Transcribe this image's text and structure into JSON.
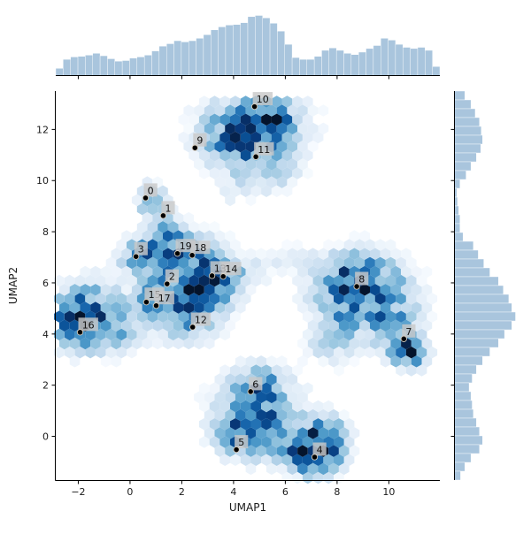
{
  "chart_data": {
    "type": "hexbin",
    "title": "",
    "xlabel": "UMAP1",
    "ylabel": "UMAP2",
    "x_tick_labels": [
      "−2",
      "0",
      "2",
      "4",
      "6",
      "8",
      "10"
    ],
    "x_tick_values": [
      -2,
      0,
      2,
      4,
      6,
      8,
      10
    ],
    "y_tick_labels": [
      "0",
      "2",
      "4",
      "6",
      "8",
      "10",
      "12"
    ],
    "y_tick_values": [
      0,
      2,
      4,
      6,
      8,
      10,
      12
    ],
    "xlim": [
      -2.87,
      11.97
    ],
    "ylim": [
      -1.71,
      13.5
    ],
    "colormap": "Blues",
    "legend": "none",
    "grid": false,
    "cluster_labels": [
      {
        "label": "0",
        "x": 0.6,
        "y": 9.32
      },
      {
        "label": "1",
        "x": 1.28,
        "y": 8.63
      },
      {
        "label": "2",
        "x": 1.43,
        "y": 5.96
      },
      {
        "label": "3",
        "x": 0.23,
        "y": 7.03
      },
      {
        "label": "4",
        "x": 7.13,
        "y": -0.81
      },
      {
        "label": "5",
        "x": 4.11,
        "y": -0.52
      },
      {
        "label": "6",
        "x": 4.66,
        "y": 1.75
      },
      {
        "label": "7",
        "x": 10.58,
        "y": 3.81
      },
      {
        "label": "8",
        "x": 8.76,
        "y": 5.86
      },
      {
        "label": "9",
        "x": 2.51,
        "y": 11.28
      },
      {
        "label": "10",
        "x": 4.81,
        "y": 12.89
      },
      {
        "label": "11",
        "x": 4.86,
        "y": 10.93
      },
      {
        "label": "12",
        "x": 2.42,
        "y": 4.27
      },
      {
        "label": "13",
        "x": 3.17,
        "y": 6.28
      },
      {
        "label": "14",
        "x": 3.6,
        "y": 6.25
      },
      {
        "label": "15",
        "x": 0.63,
        "y": 5.25
      },
      {
        "label": "16",
        "x": -1.93,
        "y": 4.07
      },
      {
        "label": "17",
        "x": 1.01,
        "y": 5.11
      },
      {
        "label": "18",
        "x": 2.4,
        "y": 7.08
      },
      {
        "label": "19",
        "x": 1.83,
        "y": 7.15
      }
    ],
    "density_blobs": [
      {
        "x": 4.75,
        "y": 11.95,
        "sx": 1.15,
        "sy": 0.9,
        "a": 0.95
      },
      {
        "x": 5.45,
        "y": 12.35,
        "sx": 0.55,
        "sy": 0.5,
        "a": 0.5
      },
      {
        "x": 3.95,
        "y": 11.35,
        "sx": 0.6,
        "sy": 0.55,
        "a": 0.35
      },
      {
        "x": 5.55,
        "y": 10.3,
        "sx": 0.5,
        "sy": 0.5,
        "a": 0.3
      },
      {
        "x": 4.15,
        "y": 9.8,
        "sx": 0.45,
        "sy": 0.4,
        "a": 0.1
      },
      {
        "x": 2.35,
        "y": 6.1,
        "sx": 1.0,
        "sy": 0.9,
        "a": 0.75
      },
      {
        "x": 3.0,
        "y": 5.85,
        "sx": 0.6,
        "sy": 0.5,
        "a": 0.5
      },
      {
        "x": 1.15,
        "y": 7.3,
        "sx": 0.6,
        "sy": 0.45,
        "a": 0.55
      },
      {
        "x": 0.3,
        "y": 7.0,
        "sx": 0.45,
        "sy": 0.4,
        "a": 0.6
      },
      {
        "x": 2.0,
        "y": 7.4,
        "sx": 0.55,
        "sy": 0.45,
        "a": 0.45
      },
      {
        "x": 3.35,
        "y": 6.6,
        "sx": 0.5,
        "sy": 0.45,
        "a": 0.4
      },
      {
        "x": 1.3,
        "y": 8.45,
        "sx": 0.35,
        "sy": 0.45,
        "a": 0.45
      },
      {
        "x": 0.75,
        "y": 9.3,
        "sx": 0.35,
        "sy": 0.45,
        "a": 0.5
      },
      {
        "x": 2.15,
        "y": 4.7,
        "sx": 0.85,
        "sy": 0.6,
        "a": 0.5
      },
      {
        "x": 1.0,
        "y": 5.3,
        "sx": 0.6,
        "sy": 0.5,
        "a": 0.5
      },
      {
        "x": 4.4,
        "y": 6.45,
        "sx": 0.6,
        "sy": 0.4,
        "a": 0.2
      },
      {
        "x": 5.5,
        "y": 6.9,
        "sx": 0.55,
        "sy": 0.4,
        "a": 0.08
      },
      {
        "x": 4.05,
        "y": 9.65,
        "sx": 0.4,
        "sy": 0.4,
        "a": 0.07
      },
      {
        "x": -1.65,
        "y": 4.7,
        "sx": 0.85,
        "sy": 0.8,
        "a": 0.9
      },
      {
        "x": -2.25,
        "y": 4.5,
        "sx": 0.5,
        "sy": 0.5,
        "a": 0.55
      },
      {
        "x": -0.5,
        "y": 4.15,
        "sx": 0.75,
        "sy": 0.5,
        "a": 0.3
      },
      {
        "x": 9.0,
        "y": 5.75,
        "sx": 1.15,
        "sy": 0.85,
        "a": 0.85
      },
      {
        "x": 8.55,
        "y": 6.3,
        "sx": 0.6,
        "sy": 0.5,
        "a": 0.5
      },
      {
        "x": 10.0,
        "y": 4.4,
        "sx": 0.7,
        "sy": 0.6,
        "a": 0.5
      },
      {
        "x": 10.75,
        "y": 3.3,
        "sx": 0.42,
        "sy": 0.38,
        "a": 1.25
      },
      {
        "x": 7.7,
        "y": 3.5,
        "sx": 0.6,
        "sy": 0.5,
        "a": 0.25
      },
      {
        "x": 8.3,
        "y": 4.6,
        "sx": 0.55,
        "sy": 0.5,
        "a": 0.4
      },
      {
        "x": 6.6,
        "y": 7.0,
        "sx": 0.5,
        "sy": 0.4,
        "a": 0.07
      },
      {
        "x": 4.9,
        "y": 0.95,
        "sx": 1.0,
        "sy": 0.95,
        "a": 0.7
      },
      {
        "x": 5.05,
        "y": 1.95,
        "sx": 0.5,
        "sy": 0.45,
        "a": 0.5
      },
      {
        "x": 4.3,
        "y": 0.0,
        "sx": 0.55,
        "sy": 0.5,
        "a": 0.65
      },
      {
        "x": 5.6,
        "y": 0.3,
        "sx": 0.5,
        "sy": 0.5,
        "a": 0.4
      },
      {
        "x": 7.2,
        "y": -0.55,
        "sx": 0.65,
        "sy": 0.6,
        "a": 1.3
      },
      {
        "x": 7.65,
        "y": 0.25,
        "sx": 0.45,
        "sy": 0.4,
        "a": 0.45
      },
      {
        "x": 6.4,
        "y": -0.65,
        "sx": 0.5,
        "sy": 0.45,
        "a": 0.3
      }
    ],
    "marginal_top": [
      0.12,
      0.27,
      0.31,
      0.32,
      0.34,
      0.37,
      0.33,
      0.28,
      0.24,
      0.25,
      0.29,
      0.31,
      0.34,
      0.41,
      0.49,
      0.53,
      0.58,
      0.56,
      0.58,
      0.62,
      0.68,
      0.76,
      0.81,
      0.84,
      0.85,
      0.88,
      0.98,
      1.0,
      0.96,
      0.87,
      0.74,
      0.52,
      0.3,
      0.27,
      0.27,
      0.32,
      0.42,
      0.46,
      0.42,
      0.37,
      0.35,
      0.39,
      0.45,
      0.5,
      0.62,
      0.59,
      0.52,
      0.47,
      0.45,
      0.47,
      0.42,
      0.15
    ],
    "marginal_right": [
      0.17,
      0.27,
      0.34,
      0.41,
      0.44,
      0.46,
      0.43,
      0.36,
      0.27,
      0.19,
      0.09,
      0.04,
      0.05,
      0.07,
      0.09,
      0.09,
      0.14,
      0.31,
      0.39,
      0.48,
      0.58,
      0.72,
      0.8,
      0.89,
      0.94,
      1.0,
      0.94,
      0.82,
      0.72,
      0.58,
      0.46,
      0.36,
      0.29,
      0.24,
      0.27,
      0.29,
      0.31,
      0.36,
      0.41,
      0.46,
      0.41,
      0.27,
      0.17,
      0.1
    ],
    "colors": {
      "marginal_fill": "#a9c5dd",
      "marginal_edge": "#ffffff",
      "axis": "#000000",
      "tick_text": "#1a1a1a",
      "label_box": "#c9c9c9",
      "label_text": "#111111",
      "point": "#000000",
      "point_edge": "#d8cfc0",
      "colormap_stops": [
        [
          0.05,
          "#f7fbff"
        ],
        [
          0.12,
          "#e5eff9"
        ],
        [
          0.2,
          "#d3e4f3"
        ],
        [
          0.3,
          "#bdd7ec"
        ],
        [
          0.42,
          "#9ec9e1"
        ],
        [
          0.55,
          "#75b2d7"
        ],
        [
          0.68,
          "#4e9ac9"
        ],
        [
          0.82,
          "#2e7ebc"
        ],
        [
          0.95,
          "#1664ab"
        ],
        [
          1.08,
          "#0a5197"
        ],
        [
          1.22,
          "#083a7c"
        ],
        [
          1.38,
          "#062552"
        ],
        [
          1.5,
          "#04142c"
        ]
      ]
    }
  }
}
